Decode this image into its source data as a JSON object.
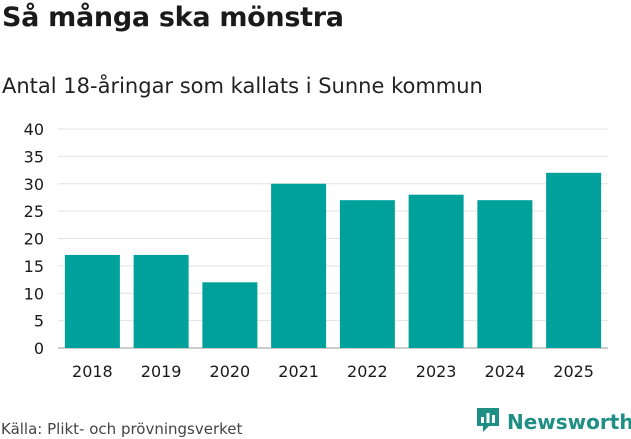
{
  "title": "Så många ska mönstra",
  "subtitle": "Antal 18-åringar som kallats i Sunne kommun",
  "source": "Källa: Plikt- och prövningsverket",
  "logo_text": "Newsworthy",
  "colors": {
    "bar": "#00A19A",
    "grid": "#e3e3e3",
    "logo": "#1f8f86"
  },
  "chart_data": {
    "type": "bar",
    "title": "Så många ska mönstra",
    "subtitle": "Antal 18-åringar som kallats i Sunne kommun",
    "categories": [
      "2018",
      "2019",
      "2020",
      "2021",
      "2022",
      "2023",
      "2024",
      "2025"
    ],
    "values": [
      17,
      17,
      12,
      30,
      27,
      28,
      27,
      32
    ],
    "xlabel": "",
    "ylabel": "",
    "ylim": [
      0,
      40
    ],
    "yticks": [
      0,
      5,
      10,
      15,
      20,
      25,
      30,
      35,
      40
    ],
    "grid": true,
    "legend": "none"
  }
}
